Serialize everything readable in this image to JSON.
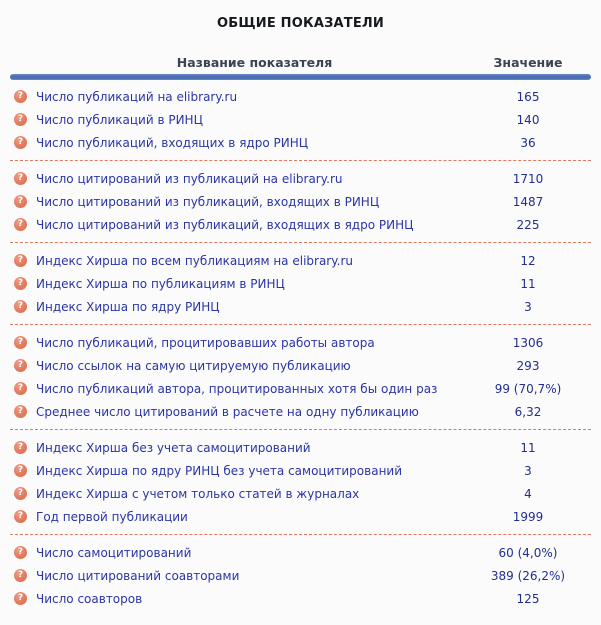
{
  "page": {
    "title": "ОБЩИЕ ПОКАЗАТЕЛИ"
  },
  "icons": {
    "help": {
      "name": "question-mark-icon",
      "glyph": "?"
    }
  },
  "colors": {
    "accent_bar": "#4d6db5",
    "separator": "#e07a5c",
    "help_icon_bg": "#e07a5c",
    "label_text": "#2b35a5",
    "value_text": "#232e8c",
    "header_text": "#3d4254",
    "title_text": "#15181e"
  },
  "table": {
    "columns": {
      "name": "Название показателя",
      "value": "Значение"
    },
    "groups": [
      {
        "rows": [
          {
            "label": "Число публикаций на elibrary.ru",
            "value": "165"
          },
          {
            "label": "Число публикаций в РИНЦ",
            "value": "140"
          },
          {
            "label": "Число публикаций, входящих в ядро РИНЦ",
            "value": "36"
          }
        ]
      },
      {
        "rows": [
          {
            "label": "Число цитирований из публикаций на elibrary.ru",
            "value": "1710"
          },
          {
            "label": "Число цитирований из публикаций, входящих в РИНЦ",
            "value": "1487"
          },
          {
            "label": "Число цитирований из публикаций, входящих в ядро РИНЦ",
            "value": "225"
          }
        ]
      },
      {
        "rows": [
          {
            "label": "Индекс Хирша по всем публикациям на elibrary.ru",
            "value": "12"
          },
          {
            "label": "Индекс Хирша по публикациям в РИНЦ",
            "value": "11"
          },
          {
            "label": "Индекс Хирша по ядру РИНЦ",
            "value": "3"
          }
        ]
      },
      {
        "rows": [
          {
            "label": "Число публикаций, процитировавших работы автора",
            "value": "1306"
          },
          {
            "label": "Число ссылок на самую цитируемую публикацию",
            "value": "293"
          },
          {
            "label": "Число публикаций автора, процитированных хотя бы один раз",
            "value": "99 (70,7%)"
          },
          {
            "label": "Среднее число цитирований в расчете на одну публикацию",
            "value": "6,32"
          }
        ]
      },
      {
        "rows": [
          {
            "label": "Индекс Хирша без учета самоцитирований",
            "value": "11"
          },
          {
            "label": "Индекс Хирша по ядру РИНЦ без учета самоцитирований",
            "value": "3"
          },
          {
            "label": "Индекс Хирша с учетом только статей в журналах",
            "value": "4"
          },
          {
            "label": "Год первой публикации",
            "value": "1999"
          }
        ]
      },
      {
        "rows": [
          {
            "label": "Число самоцитирований",
            "value": "60 (4,0%)"
          },
          {
            "label": "Число цитирований соавторами",
            "value": "389 (26,2%)"
          },
          {
            "label": "Число соавторов",
            "value": "125"
          }
        ]
      }
    ]
  }
}
